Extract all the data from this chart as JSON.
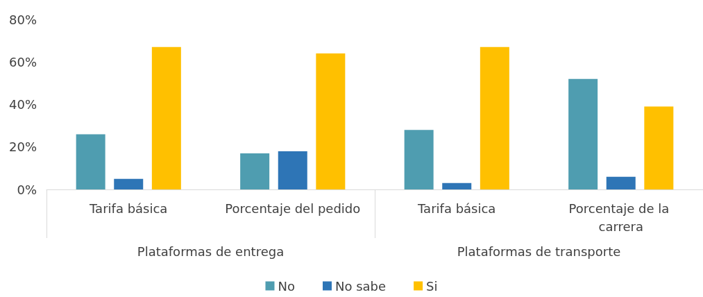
{
  "chart_data": {
    "type": "bar",
    "categories": [
      "Tarifa básica",
      "Porcentaje del pedido",
      "Tarifa básica",
      "Porcentaje de la carrera"
    ],
    "series": [
      {
        "name": "No",
        "color": "#4f9db0",
        "values": [
          26,
          17,
          28,
          52
        ]
      },
      {
        "name": "No sabe",
        "color": "#2e75b6",
        "values": [
          5,
          18,
          3,
          6
        ]
      },
      {
        "name": "Si",
        "color": "#ffc000",
        "values": [
          67,
          64,
          67,
          39
        ]
      }
    ],
    "annotations": [
      "Plataformas de entrega",
      "Plataformas de transporte"
    ],
    "ylim": [
      0,
      80
    ],
    "yticks": [
      {
        "value": 0,
        "label": "0%"
      },
      {
        "value": 20,
        "label": "20%"
      },
      {
        "value": 40,
        "label": "40%"
      },
      {
        "value": 60,
        "label": "60%"
      },
      {
        "value": 80,
        "label": "80%"
      }
    ],
    "grid": false,
    "legend": "bottom"
  }
}
